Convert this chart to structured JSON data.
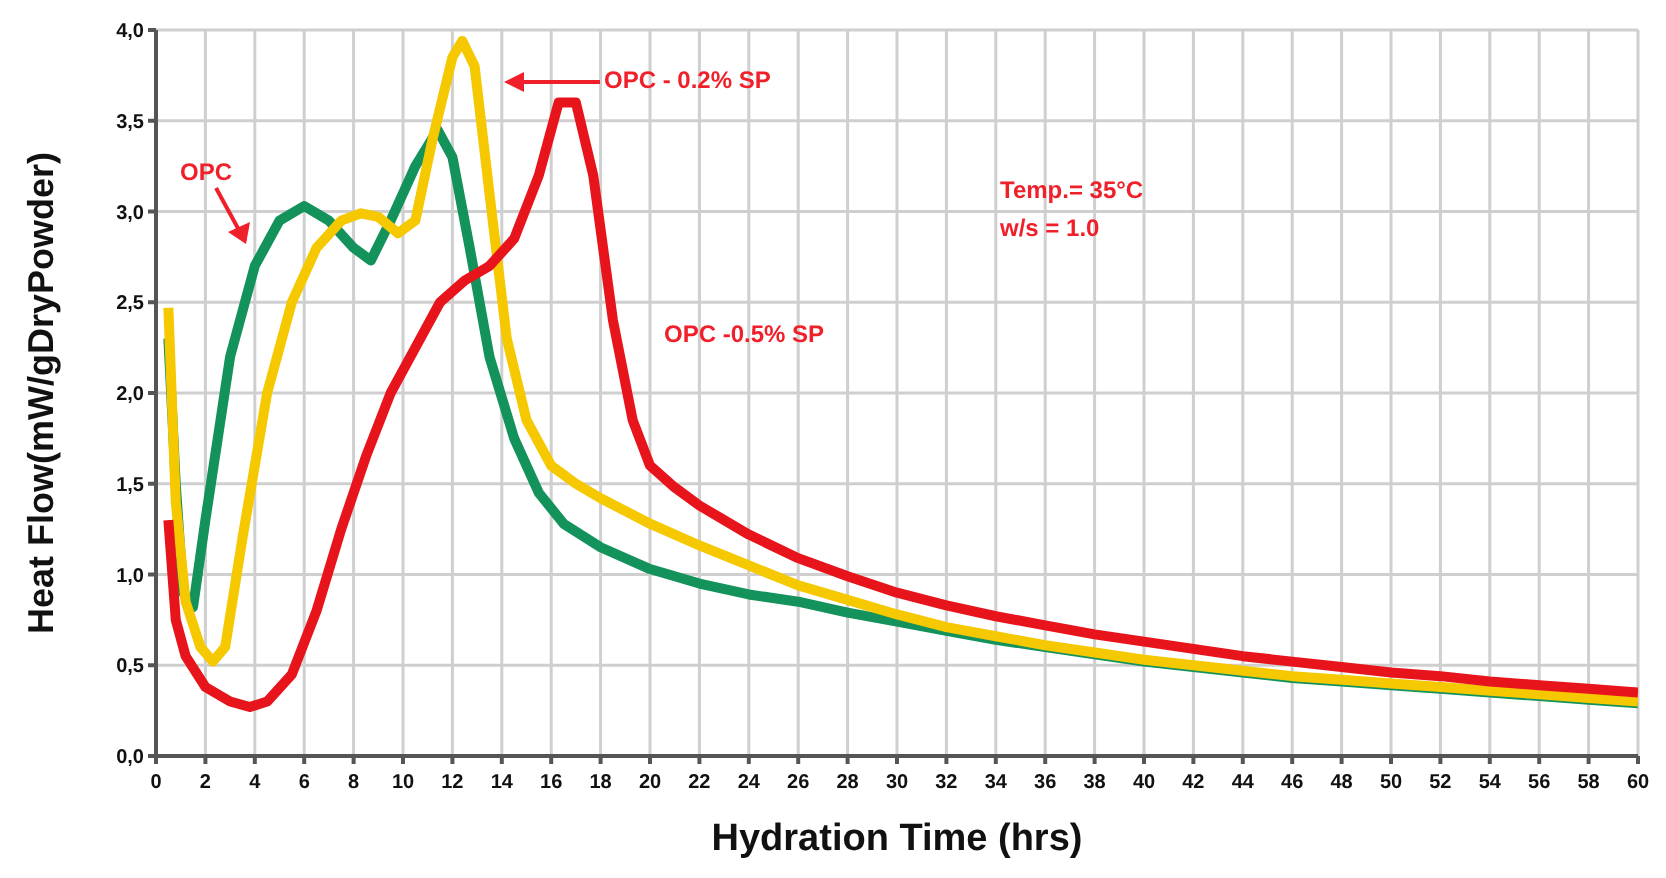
{
  "chart_data": {
    "type": "line",
    "xlabel": "Hydration Time (hrs)",
    "ylabel": "Heat Flow(mW/gDryPowder)",
    "xlim": [
      0,
      60
    ],
    "xticks": [
      0,
      2,
      4,
      6,
      8,
      10,
      12,
      14,
      16,
      18,
      20,
      22,
      24,
      26,
      28,
      30,
      32,
      34,
      36,
      38,
      40,
      42,
      44,
      46,
      48,
      50,
      52,
      54,
      56,
      58,
      60
    ],
    "ylim": [
      0,
      4
    ],
    "yticks": [
      {
        "value": 0,
        "label": "0,0"
      },
      {
        "value": 0.5,
        "label": "0,5"
      },
      {
        "value": 1,
        "label": "1,0"
      },
      {
        "value": 1.5,
        "label": "1,5"
      },
      {
        "value": 2,
        "label": "2,0"
      },
      {
        "value": 2.5,
        "label": "2,5"
      },
      {
        "value": 3,
        "label": "3,0"
      },
      {
        "value": 3.5,
        "label": "3,5"
      },
      {
        "value": 4,
        "label": "4,0"
      }
    ],
    "grid": true,
    "line_style": "solid",
    "annotations": [
      "OPC",
      "OPC - 0.2% SP",
      "OPC -0.5% SP",
      "Temp.= 35°C",
      "w/s = 1.0"
    ],
    "series": [
      {
        "color": "#13935b",
        "x": [
          0.5,
          0.8,
          1.1,
          1.5,
          2,
          3,
          4,
          5,
          6,
          7,
          8,
          8.7,
          9.5,
          10.5,
          11.4,
          12,
          12.7,
          13.5,
          14.5,
          15.5,
          16.5,
          18,
          20,
          22,
          24,
          26,
          28,
          30,
          32,
          34,
          36,
          38,
          40,
          42,
          44,
          46,
          48,
          50,
          52,
          54,
          56,
          58,
          60
        ],
        "values": [
          2.3,
          1.5,
          0.9,
          0.82,
          1.3,
          2.2,
          2.7,
          2.95,
          3.03,
          2.95,
          2.8,
          2.73,
          2.95,
          3.25,
          3.45,
          3.3,
          2.8,
          2.2,
          1.75,
          1.45,
          1.28,
          1.15,
          1.03,
          0.95,
          0.89,
          0.85,
          0.79,
          0.74,
          0.69,
          0.64,
          0.6,
          0.56,
          0.52,
          0.49,
          0.46,
          0.43,
          0.41,
          0.39,
          0.37,
          0.35,
          0.33,
          0.31,
          0.29
        ]
      },
      {
        "color": "#f5c800",
        "x": [
          0.5,
          0.8,
          1.2,
          1.8,
          2.3,
          2.8,
          3.5,
          4.5,
          5.5,
          6.5,
          7.5,
          8.3,
          9,
          9.8,
          10.5,
          11.2,
          12,
          12.4,
          12.9,
          13.5,
          14.2,
          15,
          16,
          17,
          18,
          20,
          22,
          24,
          26,
          28,
          30,
          32,
          34,
          36,
          38,
          40,
          42,
          44,
          46,
          48,
          50,
          52,
          54,
          56,
          58,
          60
        ],
        "values": [
          2.47,
          1.4,
          0.85,
          0.6,
          0.52,
          0.6,
          1.2,
          2.0,
          2.5,
          2.8,
          2.95,
          2.99,
          2.97,
          2.88,
          2.95,
          3.4,
          3.85,
          3.94,
          3.8,
          3.1,
          2.3,
          1.85,
          1.6,
          1.5,
          1.42,
          1.28,
          1.16,
          1.05,
          0.94,
          0.86,
          0.78,
          0.71,
          0.66,
          0.61,
          0.57,
          0.53,
          0.5,
          0.47,
          0.44,
          0.42,
          0.4,
          0.38,
          0.36,
          0.34,
          0.32,
          0.3
        ]
      },
      {
        "color": "#e8141b",
        "x": [
          0.5,
          0.8,
          1.2,
          2,
          3,
          3.8,
          4.5,
          5.5,
          6.5,
          7.5,
          8.5,
          9.5,
          10.5,
          11.5,
          12.5,
          13.5,
          14.5,
          15.5,
          16.3,
          17,
          17.7,
          18.5,
          19.3,
          20,
          21,
          22,
          24,
          26,
          28,
          30,
          32,
          34,
          36,
          38,
          40,
          42,
          44,
          46,
          48,
          50,
          52,
          54,
          56,
          58,
          60
        ],
        "values": [
          1.3,
          0.75,
          0.55,
          0.38,
          0.3,
          0.27,
          0.3,
          0.45,
          0.8,
          1.25,
          1.65,
          2.0,
          2.25,
          2.5,
          2.62,
          2.7,
          2.85,
          3.2,
          3.6,
          3.6,
          3.2,
          2.4,
          1.85,
          1.6,
          1.48,
          1.38,
          1.22,
          1.09,
          0.99,
          0.9,
          0.83,
          0.77,
          0.72,
          0.67,
          0.63,
          0.59,
          0.55,
          0.52,
          0.49,
          0.46,
          0.44,
          0.41,
          0.39,
          0.37,
          0.35
        ]
      }
    ]
  }
}
